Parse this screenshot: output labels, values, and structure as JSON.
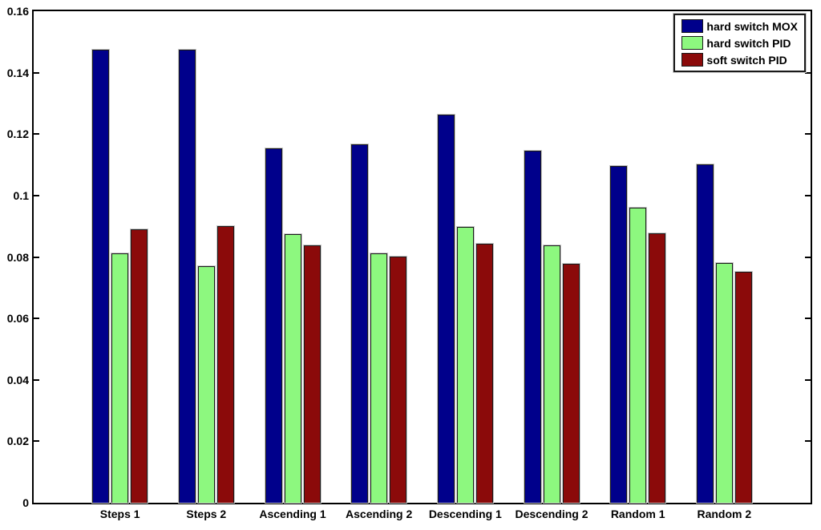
{
  "figure": {
    "background_color": "#FFFFFF",
    "axis_color": "#000000",
    "bar_edge_color": "#1A1A1A"
  },
  "chart_data": {
    "type": "bar",
    "title": "",
    "xlabel": "",
    "ylabel": "",
    "grid": false,
    "legend_position": "top-right",
    "ylim": [
      0,
      0.16
    ],
    "ytick_values": [
      0,
      0.02,
      0.04,
      0.06,
      0.08,
      0.1,
      0.12,
      0.14,
      0.16
    ],
    "ytick_labels": [
      "0",
      "0.02",
      "0.04",
      "0.06",
      "0.08",
      "0.1",
      "0.12",
      "0.14",
      "0.16"
    ],
    "categories": [
      "Steps 1",
      "Steps 2",
      "Ascending 1",
      "Ascending 2",
      "Descending 1",
      "Descending 2",
      "Random 1",
      "Random 2"
    ],
    "series": [
      {
        "name": "hard switch MOX",
        "color": "#00008B",
        "values": [
          0.1475,
          0.1476,
          0.1153,
          0.1167,
          0.1263,
          0.1147,
          0.1095,
          0.1101
        ]
      },
      {
        "name": "hard switch PID",
        "color": "#8DF87F",
        "values": [
          0.0811,
          0.0769,
          0.0875,
          0.0812,
          0.0898,
          0.0837,
          0.0961,
          0.0781
        ]
      },
      {
        "name": "soft switch PID",
        "color": "#8B0A0A",
        "values": [
          0.0889,
          0.09,
          0.0837,
          0.0802,
          0.0844,
          0.0779,
          0.0878,
          0.0752
        ]
      }
    ]
  }
}
